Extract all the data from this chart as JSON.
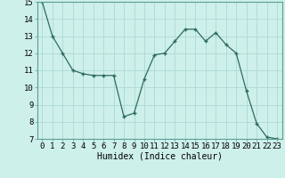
{
  "x": [
    0,
    1,
    2,
    3,
    4,
    5,
    6,
    7,
    8,
    9,
    10,
    11,
    12,
    13,
    14,
    15,
    16,
    17,
    18,
    19,
    20,
    21,
    22,
    23
  ],
  "y": [
    15,
    13,
    12,
    11,
    10.8,
    10.7,
    10.7,
    10.7,
    8.3,
    8.5,
    10.5,
    11.9,
    12.0,
    12.7,
    13.4,
    13.4,
    12.7,
    13.2,
    12.5,
    12.0,
    9.8,
    7.9,
    7.1,
    7.0
  ],
  "xlabel": "Humidex (Indice chaleur)",
  "ylim": [
    7,
    15
  ],
  "xlim": [
    -0.5,
    23.5
  ],
  "yticks": [
    7,
    8,
    9,
    10,
    11,
    12,
    13,
    14,
    15
  ],
  "xticks": [
    0,
    1,
    2,
    3,
    4,
    5,
    6,
    7,
    8,
    9,
    10,
    11,
    12,
    13,
    14,
    15,
    16,
    17,
    18,
    19,
    20,
    21,
    22,
    23
  ],
  "line_color": "#2e6b5e",
  "marker_color": "#2e6b5e",
  "bg_color": "#cef0ea",
  "grid_color": "#b0ddd6",
  "xlabel_fontsize": 7.0,
  "tick_fontsize": 6.5
}
